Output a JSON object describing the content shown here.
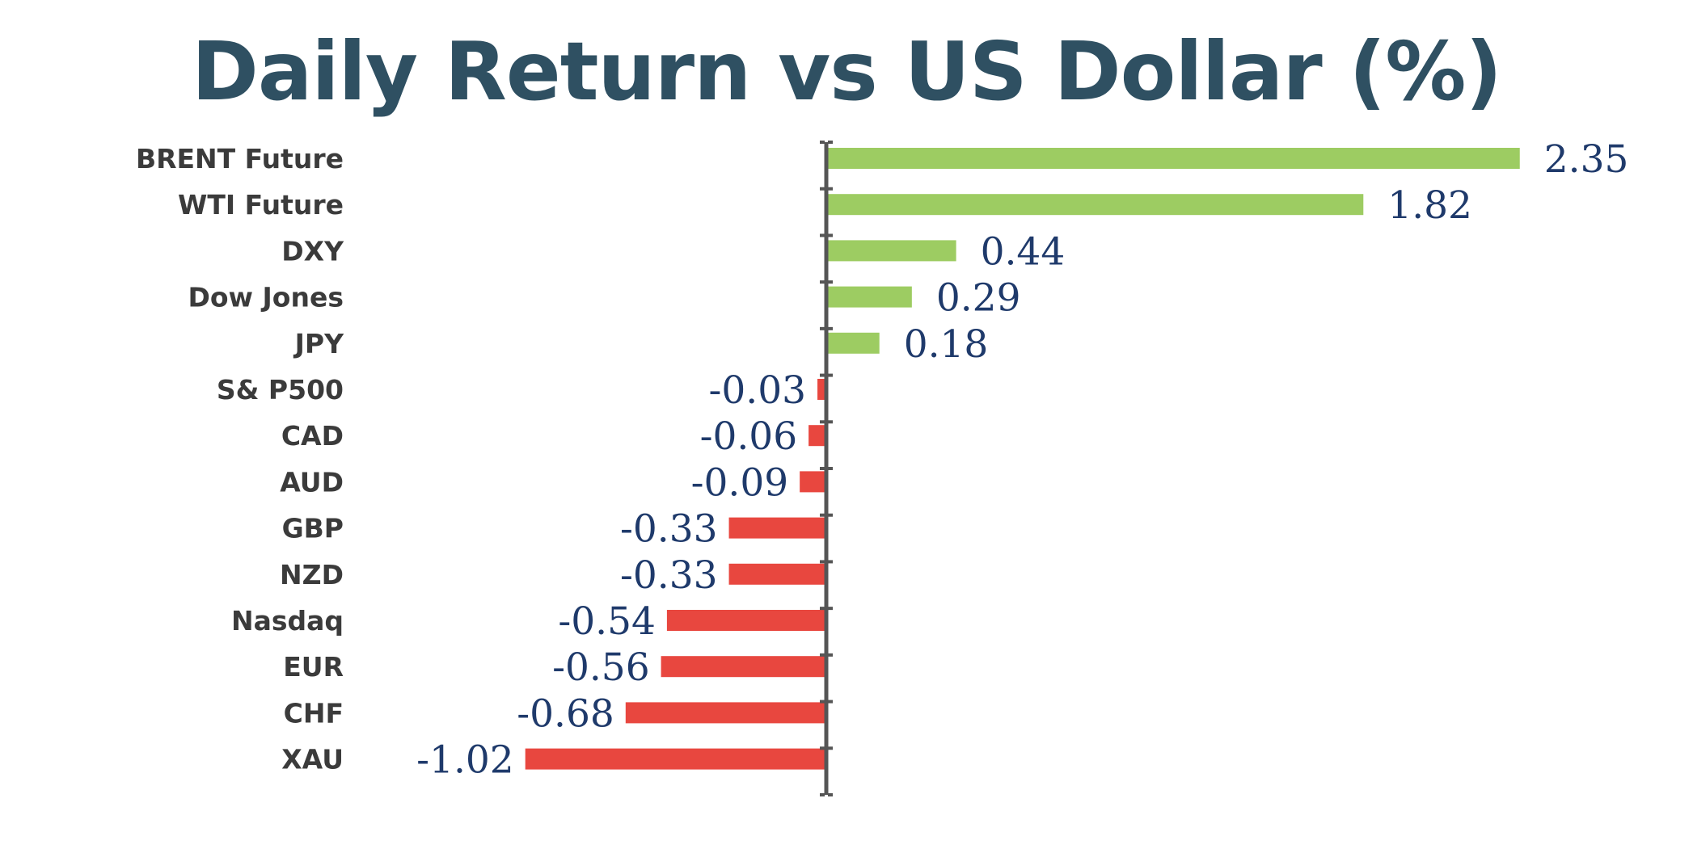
{
  "chart_data": {
    "type": "bar",
    "orientation": "horizontal",
    "title": "Daily Return vs US Dollar (%)",
    "categories": [
      "BRENT Future",
      "WTI Future",
      "DXY",
      "Dow Jones",
      "JPY",
      "S& P500",
      "CAD",
      "AUD",
      "GBP",
      "NZD",
      "Nasdaq",
      "EUR",
      "CHF",
      "XAU"
    ],
    "values": [
      2.35,
      1.82,
      0.44,
      0.29,
      0.18,
      -0.03,
      -0.06,
      -0.09,
      -0.33,
      -0.33,
      -0.54,
      -0.56,
      -0.68,
      -1.02
    ],
    "value_labels": [
      "2.35",
      "1.82",
      "0.44",
      "0.29",
      "0.18",
      "-0.03",
      "-0.06",
      "-0.09",
      "-0.33",
      "-0.33",
      "-0.54",
      "-0.56",
      "-0.68",
      "-1.02"
    ],
    "colors": {
      "positive": "#9dcc62",
      "negative": "#e8473f",
      "axis": "#555555",
      "title": "#2f5062",
      "value_label": "#1f3a6b",
      "category_label": "#3b3b3b"
    },
    "grid": false,
    "legend": "none"
  }
}
